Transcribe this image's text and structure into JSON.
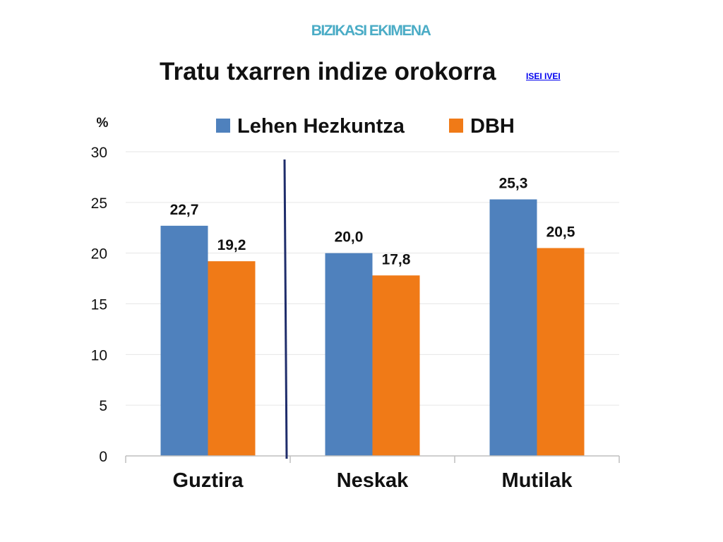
{
  "slide": {
    "header": "BIZIKASI EKIMENA",
    "title": "Tratu txarren indize orokorra",
    "link_label": "ISEI  IVEI"
  },
  "colors": {
    "series_1": "#4f81bd",
    "series_2": "#f07a17",
    "header": "#4bacc6",
    "divider": "#1f2d6b",
    "grid": "#e6e6e6"
  },
  "chart_data": {
    "type": "bar",
    "categories": [
      "Guztira",
      "Neskak",
      "Mutilak"
    ],
    "series": [
      {
        "name": "Lehen Hezkuntza",
        "values": [
          22.7,
          20.0,
          25.3
        ],
        "labels": [
          "22,7",
          "20,0",
          "25,3"
        ],
        "color": "#4f81bd"
      },
      {
        "name": "DBH",
        "values": [
          19.2,
          17.8,
          20.5
        ],
        "labels": [
          "19,2",
          "17,8",
          "20,5"
        ],
        "color": "#f07a17"
      }
    ],
    "ylabel": "%",
    "ylim": [
      0,
      30
    ],
    "yticks": [
      0,
      5,
      10,
      15,
      20,
      25,
      30
    ],
    "grid": true,
    "legend_position": "top",
    "divider_after_category": "Guztira"
  }
}
